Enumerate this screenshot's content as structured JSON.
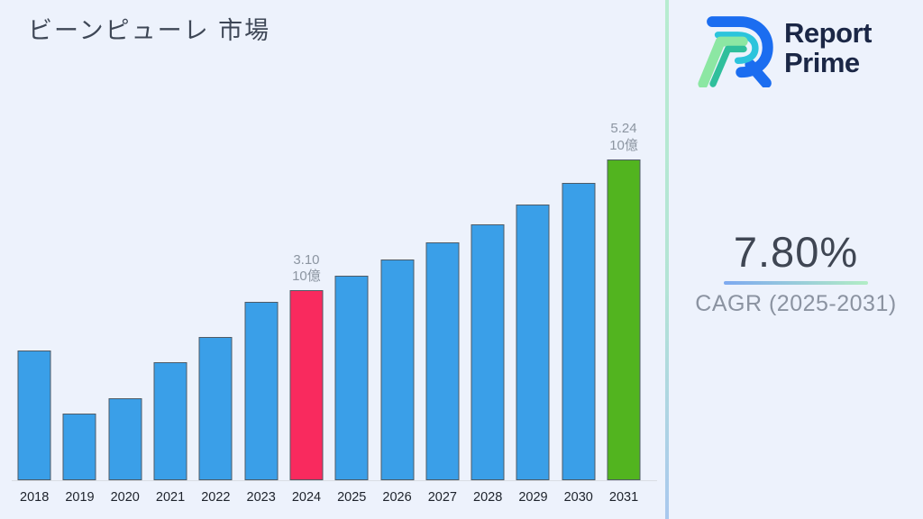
{
  "title": "ビーンピューレ 市場",
  "colors": {
    "background": "#edf2fc",
    "bar_blue": "#3a9fe8",
    "bar_pink": "#f92a5e",
    "bar_green": "#52b41f",
    "bar_border": "#4f5b66",
    "annotation_text": "#8c95a1",
    "axis_label": "#1d222b",
    "title_text": "#3e4756",
    "axis_line": "#d9dde4",
    "divider_top": "#b7ecd0",
    "divider_bottom": "#a9c8ee",
    "underline_left": "#7da9f0",
    "underline_right": "#b2edc5",
    "logo_text": "#1b2746",
    "cagr_value_text": "#3f4653",
    "cagr_label_text": "#8b93a1"
  },
  "chart_data": {
    "type": "bar",
    "title": "ビーンピューレ 市場",
    "categories": [
      "2018",
      "2019",
      "2020",
      "2021",
      "2022",
      "2023",
      "2024",
      "2025",
      "2026",
      "2027",
      "2028",
      "2029",
      "2030",
      "2031"
    ],
    "values": [
      2.12,
      1.09,
      1.34,
      1.93,
      2.34,
      2.91,
      3.1,
      3.34,
      3.6,
      3.88,
      4.18,
      4.51,
      4.86,
      5.24
    ],
    "unit": "10億",
    "xlabel": "",
    "ylabel": "",
    "ylim": [
      0,
      5.5
    ],
    "grid": false,
    "legend": false,
    "highlights": [
      {
        "index": 6,
        "color_key": "bar_pink"
      },
      {
        "index": 13,
        "color_key": "bar_green"
      }
    ],
    "annotations": [
      {
        "index": 6,
        "lines": [
          "3.10",
          "10億"
        ]
      },
      {
        "index": 13,
        "lines": [
          "5.24",
          "10億"
        ]
      }
    ]
  },
  "sidebar": {
    "logo": {
      "line1": "Report",
      "line2": "Prime"
    },
    "cagr": {
      "value": "7.80%",
      "label": "CAGR (2025-2031)"
    }
  }
}
